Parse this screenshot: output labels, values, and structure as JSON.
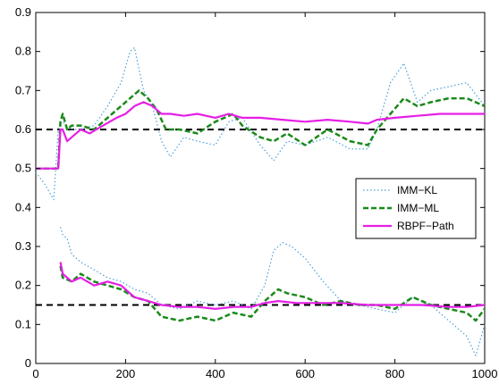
{
  "chart_data": {
    "type": "line",
    "title": "",
    "xlabel": "",
    "ylabel": "",
    "xlim": [
      0,
      1000
    ],
    "ylim": [
      0,
      0.9
    ],
    "xticks": [
      0,
      200,
      400,
      600,
      800,
      1000
    ],
    "yticks": [
      0,
      0.1,
      0.2,
      0.3,
      0.4,
      0.5,
      0.6,
      0.7,
      0.8,
      0.9
    ],
    "xtick_labels": [
      "0",
      "200",
      "400",
      "600",
      "800",
      "1000"
    ],
    "ytick_labels": [
      "0",
      "0.1",
      "0.2",
      "0.3",
      "0.4",
      "0.5",
      "0.6",
      "0.7",
      "0.8",
      "0.9"
    ],
    "grid": false,
    "legend_position": "center-right",
    "reference_lines": [
      {
        "y": 0.6,
        "style": "dashed",
        "color": "#000000"
      },
      {
        "y": 0.15,
        "style": "dashed",
        "color": "#000000"
      }
    ],
    "series": [
      {
        "name": "IMM−KL",
        "color": "#4a9fd8",
        "style": "dotted",
        "groups": [
          {
            "x": [
              0,
              20,
              40,
              50,
              55,
              60,
              80,
              100,
              130,
              160,
              190,
              210,
              220,
              240,
              260,
              280,
              300,
              330,
              360,
              400,
              430,
              460,
              500,
              530,
              560,
              600,
              650,
              700,
              740,
              760,
              790,
              820,
              850,
              880,
              920,
              960,
              1000
            ],
            "y": [
              0.49,
              0.46,
              0.42,
              0.6,
              0.62,
              0.62,
              0.6,
              0.6,
              0.61,
              0.66,
              0.72,
              0.8,
              0.81,
              0.7,
              0.66,
              0.57,
              0.53,
              0.58,
              0.57,
              0.56,
              0.62,
              0.63,
              0.56,
              0.52,
              0.57,
              0.56,
              0.58,
              0.55,
              0.55,
              0.6,
              0.72,
              0.77,
              0.67,
              0.7,
              0.71,
              0.72,
              0.66
            ]
          },
          {
            "x": [
              55,
              60,
              70,
              80,
              100,
              130,
              160,
              190,
              220,
              250,
              280,
              320,
              360,
              400,
              440,
              480,
              510,
              530,
              550,
              570,
              600,
              640,
              680,
              720,
              760,
              800,
              840,
              880,
              920,
              960,
              980,
              1000
            ],
            "y": [
              0.35,
              0.33,
              0.32,
              0.28,
              0.26,
              0.24,
              0.22,
              0.21,
              0.19,
              0.18,
              0.15,
              0.14,
              0.16,
              0.15,
              0.16,
              0.14,
              0.2,
              0.29,
              0.31,
              0.3,
              0.27,
              0.21,
              0.16,
              0.15,
              0.14,
              0.13,
              0.17,
              0.15,
              0.11,
              0.07,
              0.02,
              0.1
            ]
          }
        ]
      },
      {
        "name": "IMM−ML",
        "color": "#1a8a1a",
        "style": "dashed",
        "groups": [
          {
            "x": [
              0,
              50,
              55,
              60,
              70,
              80,
              100,
              130,
              160,
              190,
              210,
              230,
              250,
              270,
              290,
              320,
              360,
              400,
              440,
              460,
              500,
              530,
              560,
              600,
              650,
              700,
              740,
              760,
              790,
              820,
              850,
              880,
              920,
              960,
              1000
            ],
            "y": [
              0.5,
              0.5,
              0.62,
              0.64,
              0.6,
              0.61,
              0.61,
              0.6,
              0.63,
              0.66,
              0.68,
              0.7,
              0.68,
              0.65,
              0.6,
              0.6,
              0.59,
              0.62,
              0.64,
              0.61,
              0.58,
              0.57,
              0.59,
              0.56,
              0.6,
              0.57,
              0.56,
              0.6,
              0.64,
              0.68,
              0.66,
              0.67,
              0.68,
              0.68,
              0.66
            ]
          },
          {
            "x": [
              55,
              60,
              80,
              100,
              130,
              160,
              190,
              220,
              250,
              280,
              320,
              360,
              400,
              440,
              480,
              510,
              540,
              560,
              600,
              640,
              680,
              720,
              760,
              800,
              840,
              880,
              920,
              960,
              980,
              1000
            ],
            "y": [
              0.25,
              0.22,
              0.21,
              0.23,
              0.21,
              0.2,
              0.19,
              0.17,
              0.16,
              0.12,
              0.11,
              0.12,
              0.11,
              0.13,
              0.12,
              0.16,
              0.19,
              0.18,
              0.17,
              0.15,
              0.16,
              0.15,
              0.15,
              0.14,
              0.17,
              0.15,
              0.14,
              0.13,
              0.11,
              0.14
            ]
          }
        ]
      },
      {
        "name": "RBPF−Path",
        "color": "#e61ee6",
        "style": "solid",
        "groups": [
          {
            "x": [
              0,
              50,
              55,
              60,
              70,
              80,
              100,
              120,
              150,
              180,
              200,
              220,
              240,
              260,
              280,
              300,
              330,
              360,
              400,
              430,
              460,
              500,
              550,
              600,
              650,
              700,
              740,
              760,
              800,
              850,
              900,
              950,
              1000
            ],
            "y": [
              0.5,
              0.5,
              0.6,
              0.6,
              0.57,
              0.58,
              0.6,
              0.59,
              0.61,
              0.63,
              0.64,
              0.66,
              0.67,
              0.66,
              0.64,
              0.64,
              0.635,
              0.64,
              0.63,
              0.64,
              0.63,
              0.63,
              0.625,
              0.62,
              0.625,
              0.62,
              0.615,
              0.625,
              0.63,
              0.635,
              0.64,
              0.64,
              0.64
            ]
          },
          {
            "x": [
              55,
              60,
              80,
              100,
              130,
              160,
              190,
              220,
              250,
              280,
              320,
              360,
              400,
              440,
              480,
              510,
              540,
              580,
              620,
              680,
              740,
              800,
              860,
              920,
              960,
              1000
            ],
            "y": [
              0.26,
              0.23,
              0.21,
              0.22,
              0.2,
              0.21,
              0.2,
              0.17,
              0.16,
              0.15,
              0.145,
              0.145,
              0.14,
              0.145,
              0.145,
              0.155,
              0.16,
              0.155,
              0.155,
              0.155,
              0.15,
              0.15,
              0.15,
              0.145,
              0.145,
              0.15
            ]
          }
        ]
      }
    ]
  }
}
